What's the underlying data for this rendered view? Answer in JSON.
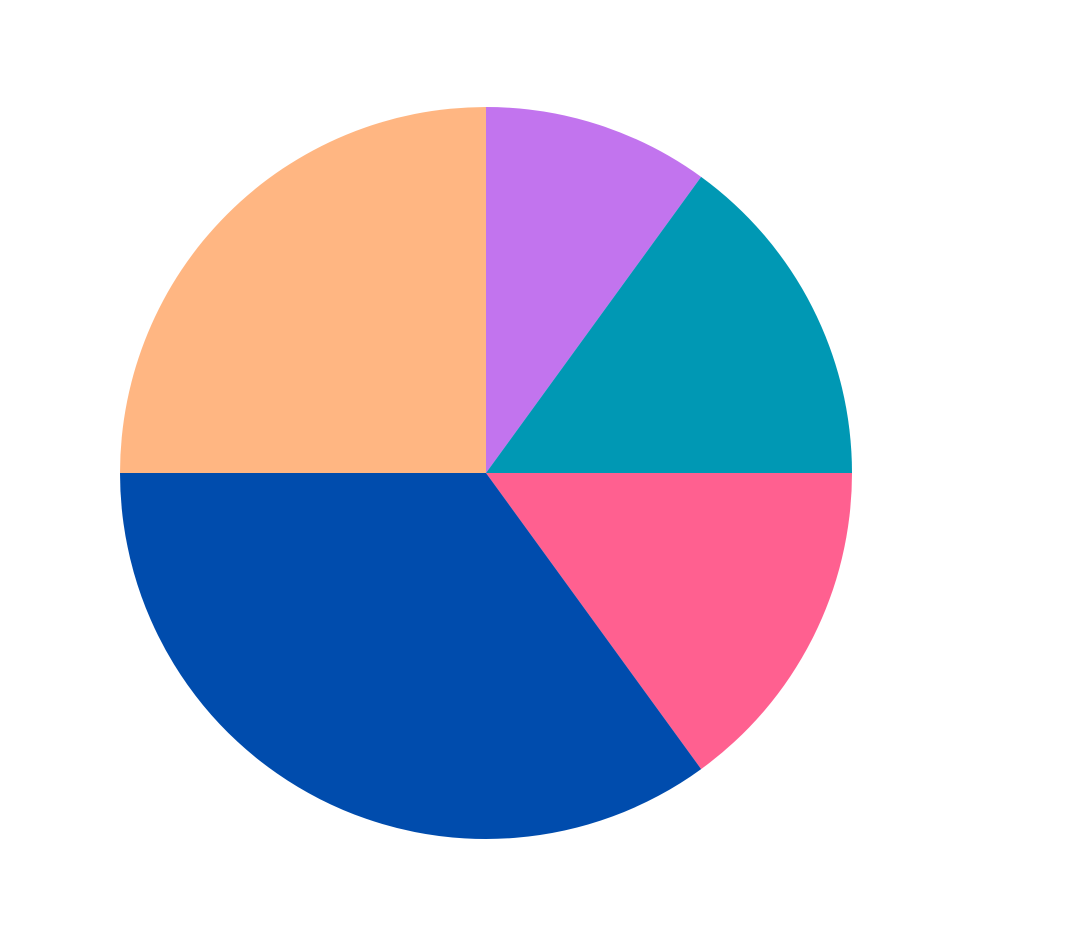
{
  "chart_data": {
    "type": "pie",
    "title": "",
    "start_angle_deg": 90,
    "direction": "clockwise",
    "slices": [
      {
        "value": 10,
        "color": "#C274EE"
      },
      {
        "value": 15,
        "color": "#0098B4"
      },
      {
        "value": 15,
        "color": "#FF6090"
      },
      {
        "value": 35,
        "color": "#004CAD"
      },
      {
        "value": 25,
        "color": "#FFB682"
      }
    ]
  }
}
